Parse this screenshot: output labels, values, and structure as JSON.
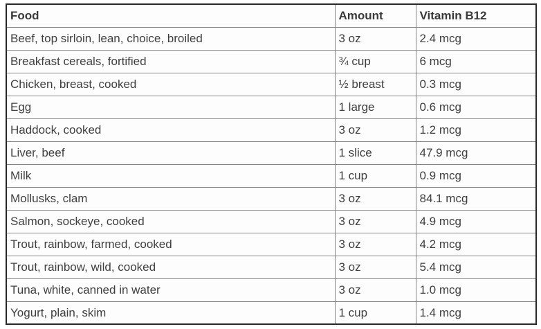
{
  "chart_data": {
    "type": "table",
    "columns": [
      "Food",
      "Amount",
      "Vitamin B12"
    ],
    "rows": [
      [
        "Beef, top sirloin, lean, choice, broiled",
        "3 oz",
        "2.4 mcg"
      ],
      [
        "Breakfast cereals, fortified",
        "¾ cup",
        "6 mcg"
      ],
      [
        "Chicken, breast, cooked",
        "½ breast",
        "0.3 mcg"
      ],
      [
        "Egg",
        "1 large",
        "0.6 mcg"
      ],
      [
        "Haddock, cooked",
        "3 oz",
        "1.2 mcg"
      ],
      [
        "Liver, beef",
        "1 slice",
        "47.9 mcg"
      ],
      [
        "Milk",
        "1 cup",
        "0.9 mcg"
      ],
      [
        "Mollusks, clam",
        "3 oz",
        "84.1 mcg"
      ],
      [
        "Salmon, sockeye, cooked",
        "3 oz",
        "4.9 mcg"
      ],
      [
        "Trout, rainbow, farmed, cooked",
        "3 oz",
        "4.2 mcg"
      ],
      [
        "Trout, rainbow, wild, cooked",
        "3 oz",
        "5.4 mcg"
      ],
      [
        "Tuna, white, canned in water",
        "3 oz",
        "1.0 mcg"
      ],
      [
        "Yogurt, plain, skim",
        "1 cup",
        "1.4 mcg"
      ]
    ],
    "layout": {
      "grid": true,
      "header_bold": true
    }
  },
  "colors": {
    "outer_border": "#282828",
    "inner_border": "#848484",
    "text": "#3f3f3f",
    "cell_background": "#fdfdfd",
    "page_background": "#ffffff"
  }
}
